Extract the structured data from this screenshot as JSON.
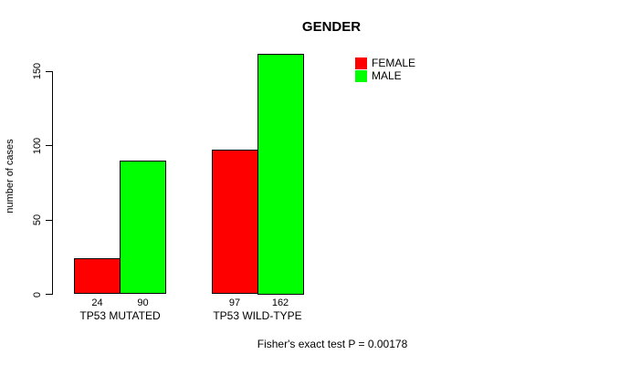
{
  "chart_data": {
    "type": "bar",
    "title": "GENDER",
    "ylabel": "number of cases",
    "xlabel": "",
    "categories": [
      "TP53 MUTATED",
      "TP53 WILD-TYPE"
    ],
    "series": [
      {
        "name": "FEMALE",
        "color": "#ff0000",
        "values": [
          24,
          97
        ]
      },
      {
        "name": "MALE",
        "color": "#00ff00",
        "values": [
          90,
          162
        ]
      }
    ],
    "yticks": [
      0,
      50,
      100,
      150
    ],
    "ylim": [
      0,
      162
    ],
    "grid": false,
    "legend_position": "top-right",
    "annotation": "Fisher's exact test P = 0.00178"
  }
}
